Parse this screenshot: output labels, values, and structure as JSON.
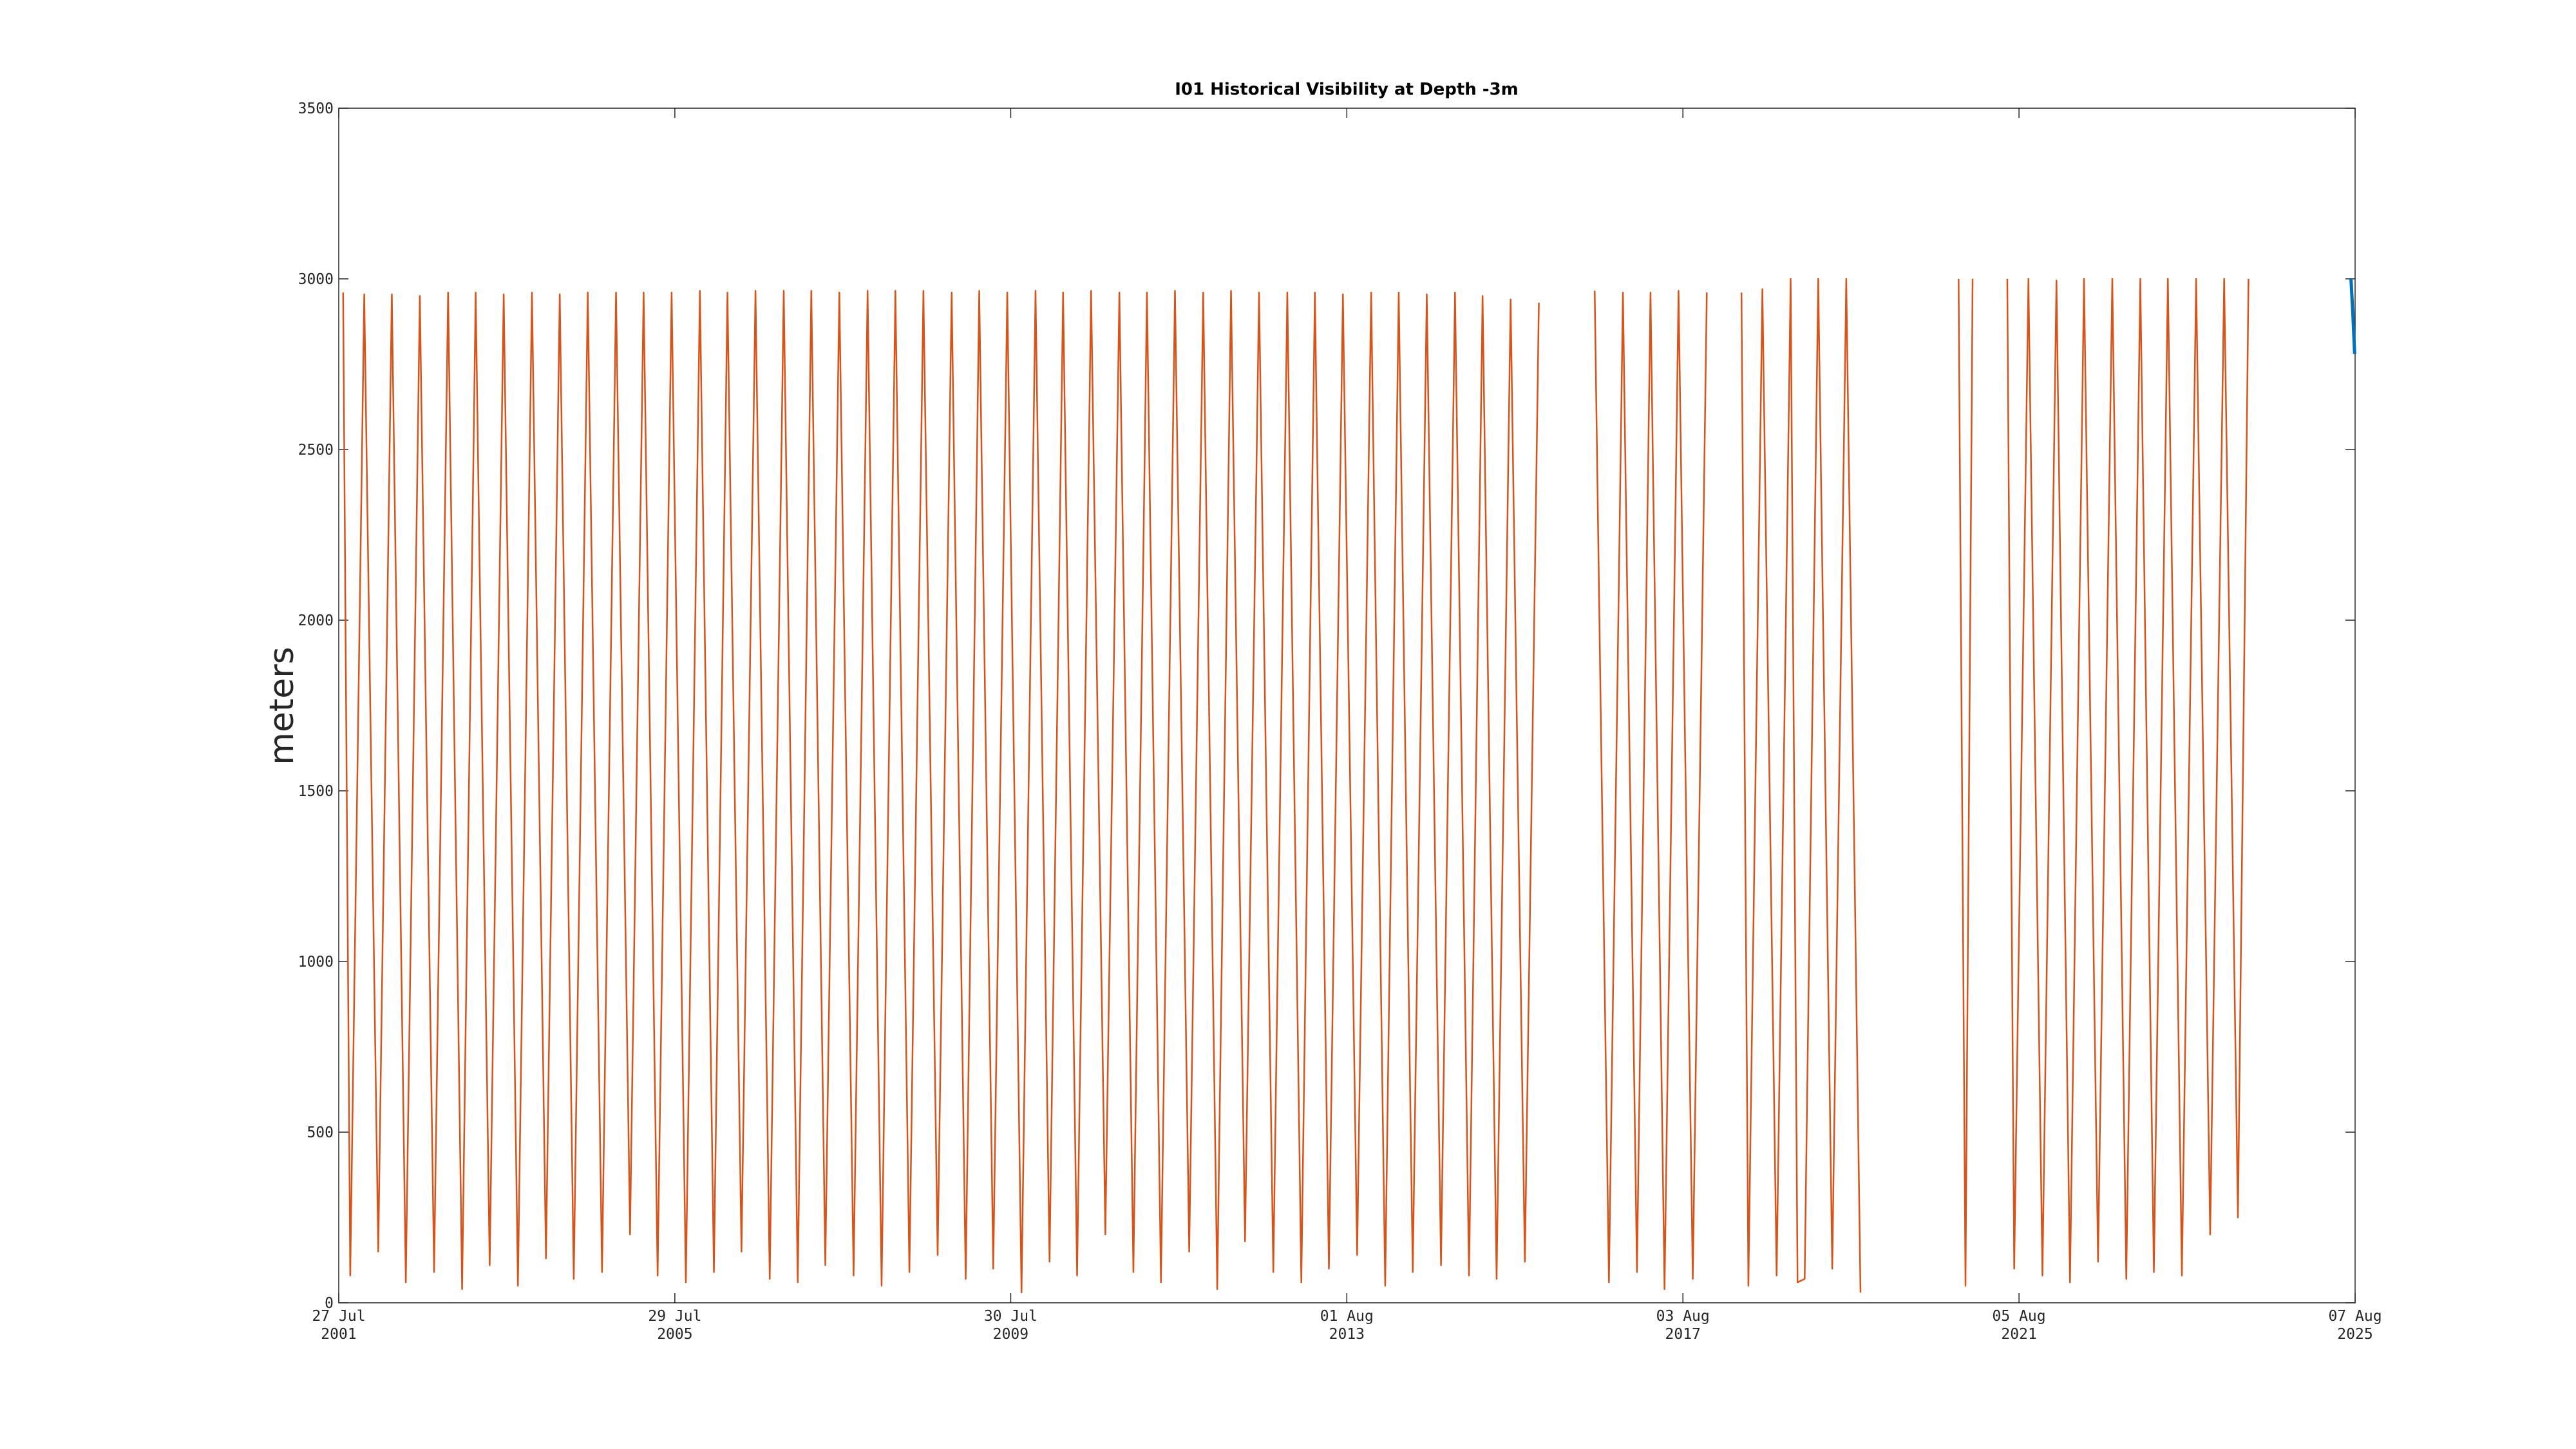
{
  "chart_data": {
    "type": "line",
    "title": "I01 Historical Visibility at Depth -3m",
    "y_label": "meters",
    "xlim": [
      "2001-07-27",
      "2025-08-07"
    ],
    "xticks": [
      {
        "value": "2001-07-27",
        "label": "27 Jul 2001"
      },
      {
        "value": "2005-07-29",
        "label": "29 Jul 2005"
      },
      {
        "value": "2009-07-30",
        "label": "30 Jul 2009"
      },
      {
        "value": "2013-08-01",
        "label": "01 Aug 2013"
      },
      {
        "value": "2017-08-03",
        "label": "03 Aug 2017"
      },
      {
        "value": "2021-08-05",
        "label": "05 Aug 2021"
      },
      {
        "value": "2025-08-07",
        "label": "07 Aug 2025"
      }
    ],
    "ylim": [
      0,
      3500
    ],
    "yticks": [
      0,
      500,
      1000,
      1500,
      2000,
      2500,
      3000,
      3500
    ],
    "grid": false,
    "series": [
      {
        "color": "#d95319",
        "x": [
          "2001-08-15",
          "2001-09-15",
          "2001-11-15",
          "2002-01-15",
          "2002-03-15",
          "2002-05-15",
          "2002-07-15",
          "2002-09-15",
          "2002-11-15",
          "2003-01-15",
          "2003-03-15",
          "2003-05-15",
          "2003-07-15",
          "2003-09-15",
          "2003-11-15",
          "2004-01-15",
          "2004-03-15",
          "2004-05-15",
          "2004-07-15",
          "2004-09-15",
          "2004-11-15",
          "2005-01-15",
          "2005-03-15",
          "2005-05-15",
          "2005-07-15",
          "2005-09-15",
          "2005-11-15",
          "2006-01-15",
          "2006-03-15",
          "2006-05-15",
          "2006-07-15",
          "2006-09-15",
          "2006-11-15",
          "2007-01-15",
          "2007-03-15",
          "2007-05-15",
          "2007-07-15",
          "2007-09-15",
          "2007-11-15",
          "2008-01-15",
          "2008-03-15",
          "2008-05-15",
          "2008-07-15",
          "2008-09-15",
          "2008-11-15",
          "2009-01-15",
          "2009-03-15",
          "2009-05-15",
          "2009-07-15",
          "2009-09-15",
          "2009-11-15",
          "2010-01-15",
          "2010-03-15",
          "2010-05-15",
          "2010-07-15",
          "2010-09-15",
          "2010-11-15",
          "2011-01-15",
          "2011-03-15",
          "2011-05-15",
          "2011-07-15",
          "2011-09-15",
          "2011-11-15",
          "2012-01-15",
          "2012-03-15",
          "2012-05-15",
          "2012-07-15",
          "2012-09-15",
          "2012-11-15",
          "2013-01-15",
          "2013-03-15",
          "2013-05-15",
          "2013-07-15",
          "2013-09-15",
          "2013-11-15",
          "2014-01-15",
          "2014-03-15",
          "2014-05-15",
          "2014-07-15",
          "2014-09-15",
          "2014-11-15",
          "2015-01-15",
          "2015-03-15",
          "2015-05-15",
          "2015-07-15",
          "2015-09-15",
          "2015-11-15",
          "2015-12-15",
          "2016-07-15",
          "2016-09-15",
          "2016-11-15",
          "2017-01-15",
          "2017-03-15",
          "2017-05-15",
          "2017-07-15",
          "2017-09-15",
          "2017-11-15",
          "2018-01-15",
          "2018-04-15",
          "2018-05-15",
          "2018-07-15",
          "2018-09-15",
          "2018-11-15",
          "2018-12-15",
          "2019-01-15",
          "2019-03-15",
          "2019-05-15",
          "2019-07-15",
          "2019-09-15",
          "2019-12-15",
          "2020-11-15",
          "2020-12-15",
          "2021-01-15",
          "2021-03-15",
          "2021-06-15",
          "2021-07-15",
          "2021-09-15",
          "2021-11-15",
          "2022-01-15",
          "2022-03-15",
          "2022-05-15",
          "2022-07-15",
          "2022-09-15",
          "2022-11-15",
          "2023-01-15",
          "2023-03-15",
          "2023-05-15",
          "2023-07-15",
          "2023-09-15",
          "2023-11-15",
          "2024-01-15",
          "2024-03-15",
          "2024-04-30"
        ],
        "values": [
          2960,
          80,
          2955,
          150,
          2955,
          60,
          2950,
          90,
          2960,
          40,
          2960,
          110,
          2955,
          50,
          2960,
          130,
          2955,
          70,
          2960,
          90,
          2960,
          200,
          2960,
          80,
          2960,
          60,
          2965,
          90,
          2960,
          150,
          2965,
          70,
          2965,
          60,
          2965,
          110,
          2960,
          80,
          2965,
          50,
          2965,
          90,
          2965,
          140,
          2960,
          70,
          2965,
          100,
          2960,
          30,
          2965,
          120,
          2960,
          80,
          2965,
          200,
          2960,
          90,
          2960,
          60,
          2965,
          150,
          2960,
          40,
          2965,
          180,
          2960,
          90,
          2960,
          60,
          2960,
          100,
          2955,
          140,
          2960,
          50,
          2960,
          90,
          2955,
          110,
          2960,
          80,
          2950,
          70,
          2940,
          120,
          2930,
          null,
          2965,
          60,
          2960,
          90,
          2960,
          40,
          2965,
          70,
          2960,
          null,
          2960,
          50,
          2970,
          80,
          3000,
          60,
          70,
          3000,
          100,
          3000,
          30,
          null,
          3000,
          50,
          3000,
          null,
          3000,
          100,
          3000,
          80,
          2995,
          60,
          3000,
          120,
          3000,
          70,
          3000,
          90,
          3000,
          80,
          3000,
          200,
          3000,
          250,
          3000
        ]
      },
      {
        "color": "#0072bd",
        "x": [
          "2025-07-20",
          "2025-07-28",
          "2025-08-05"
        ],
        "values": [
          3000,
          2900,
          2780
        ]
      }
    ]
  }
}
